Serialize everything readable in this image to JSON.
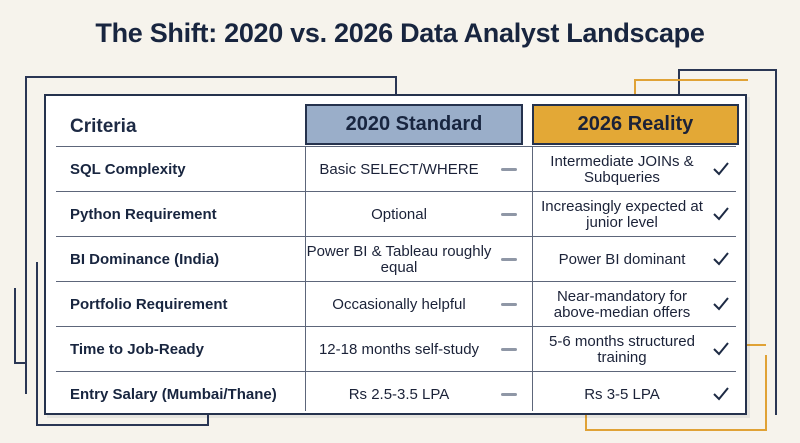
{
  "title": "The Shift: 2020 vs. 2026 Data Analyst Landscape",
  "headers": {
    "criteria": "Criteria",
    "col2020": "2020 Standard",
    "col2026": "2026 Reality"
  },
  "rows": [
    {
      "criteria": "SQL Complexity",
      "v2020": "Basic SELECT/WHERE",
      "v2026": "Intermediate JOINs & Subqueries"
    },
    {
      "criteria": "Python Requirement",
      "v2020": "Optional",
      "v2026": "Increasingly expected at junior level"
    },
    {
      "criteria": "BI Dominance (India)",
      "v2020": "Power BI & Tableau roughly equal",
      "v2026": "Power BI dominant"
    },
    {
      "criteria": "Portfolio Requirement",
      "v2020": "Occasionally helpful",
      "v2026": "Near-mandatory for above-median offers"
    },
    {
      "criteria": "Time to Job-Ready",
      "v2020": "12-18 months self-study",
      "v2026": "5-6 months structured training"
    },
    {
      "criteria": "Entry Salary (Mumbai/Thane)",
      "v2020": "Rs 2.5-3.5 LPA",
      "v2026": "Rs 3-5 LPA"
    }
  ],
  "icons": {
    "row_2020": "dash-icon",
    "row_2026": "checkmark-icon"
  },
  "colors": {
    "header_2020": "#9aaec9",
    "header_2026": "#e3a836",
    "ink": "#18253f"
  }
}
